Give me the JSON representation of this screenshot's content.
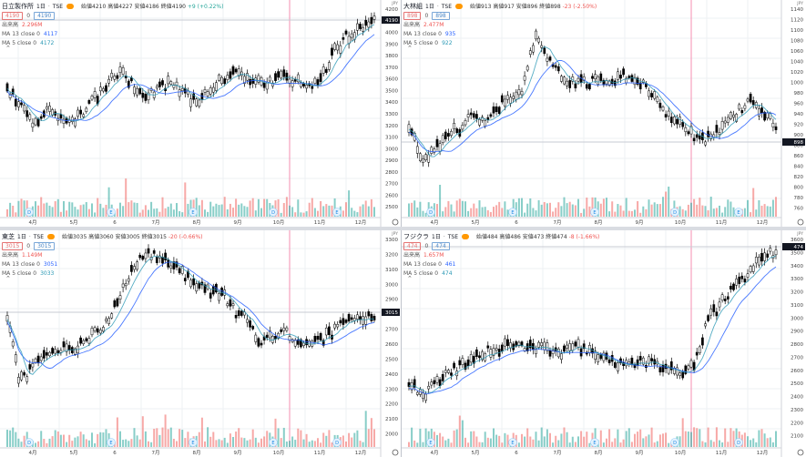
{
  "colors": {
    "up": "#26a69a",
    "down": "#ef5350",
    "candle_up": "#ffffff",
    "candle_down": "#000000",
    "ma13": "#2962ff",
    "ma5": "#2b99b5",
    "grid": "#eef0f3",
    "marker": "#ff5722"
  },
  "panes": [
    {
      "key": "p1",
      "name": "日立製作所",
      "interval": "1日",
      "exchange": "TSE",
      "ohlc": {
        "o": "4210",
        "h": "4227",
        "l": "4186",
        "c": "4190",
        "chg": "+9 (+0.22%)"
      },
      "labels": {
        "o": "始値",
        "h": "高値",
        "l": "安値",
        "c": "終値"
      },
      "boxes": [
        "4190",
        "0",
        "4190"
      ],
      "volume": {
        "label": "出来高",
        "value": "2.296M"
      },
      "ma13": {
        "label": "MA 13 close 0",
        "value": "4117"
      },
      "ma5": {
        "label": "MA 5 close 0",
        "value": "4172"
      },
      "price_axis": [
        "4200",
        "4100",
        "4000",
        "3900",
        "3800",
        "3700",
        "3600",
        "3500",
        "3400",
        "3300",
        "3200",
        "3100",
        "3000",
        "2900",
        "2800",
        "2700",
        "2600",
        "2500"
      ],
      "last_price": "4190",
      "dates": [
        "4月",
        "5月",
        "6",
        "7月",
        "8月",
        "9月",
        "10月",
        "11月",
        "12月"
      ]
    },
    {
      "key": "p2",
      "name": "大林組",
      "interval": "1日",
      "exchange": "TSE",
      "ohlc": {
        "o": "913",
        "h": "917",
        "l": "896",
        "c": "898",
        "chg": "-23 (-2.50%)"
      },
      "labels": {
        "o": "始値",
        "h": "高値",
        "l": "安値",
        "c": "終値"
      },
      "boxes": [
        "898",
        "0",
        "898"
      ],
      "volume": {
        "label": "出来高",
        "value": "2.477M"
      },
      "ma13": {
        "label": "MA 13 close 0",
        "value": "935"
      },
      "ma5": {
        "label": "MA 5 close 0",
        "value": "922"
      },
      "price_axis": [
        "1140",
        "1120",
        "1100",
        "1080",
        "1060",
        "1040",
        "1020",
        "1000",
        "980",
        "960",
        "940",
        "920",
        "900",
        "880",
        "860",
        "840",
        "820",
        "800",
        "780",
        "760"
      ],
      "last_price": "898",
      "dates": [
        "4月",
        "5月",
        "6",
        "7月",
        "8月",
        "9月",
        "10月",
        "11月",
        "12月"
      ]
    },
    {
      "key": "p3",
      "name": "東芝",
      "interval": "1日",
      "exchange": "TSE",
      "ohlc": {
        "o": "3035",
        "h": "3060",
        "l": "3005",
        "c": "3015",
        "chg": "-20 (-0.66%)"
      },
      "labels": {
        "o": "始値",
        "h": "高値",
        "l": "安値",
        "c": "終値"
      },
      "boxes": [
        "3015",
        "0",
        "3015"
      ],
      "volume": {
        "label": "出来高",
        "value": "1.149M"
      },
      "ma13": {
        "label": "MA 13 close 0",
        "value": "3051"
      },
      "ma5": {
        "label": "MA 5 close 0",
        "value": "3033"
      },
      "price_axis": [
        "3300",
        "3200",
        "3100",
        "3000",
        "2900",
        "2800",
        "2700",
        "2600",
        "2500",
        "2400",
        "2300",
        "2200",
        "2100",
        "2000"
      ],
      "last_price": "3015",
      "dates": [
        "4月",
        "5月",
        "6",
        "7月",
        "8月",
        "9月",
        "10月",
        "11月",
        "12月"
      ]
    },
    {
      "key": "p4",
      "name": "フジクラ",
      "interval": "1日",
      "exchange": "TSE",
      "ohlc": {
        "o": "484",
        "h": "486",
        "l": "473",
        "c": "474",
        "chg": "-8 (-1.66%)"
      },
      "labels": {
        "o": "始値",
        "h": "高値",
        "l": "安値",
        "c": "終値"
      },
      "boxes": [
        "474",
        "0",
        "474"
      ],
      "volume": {
        "label": "出来高",
        "value": "1.657M"
      },
      "ma13": {
        "label": "MA 13 close 0",
        "value": "461"
      },
      "ma5": {
        "label": "MA 5 close 0",
        "value": "474"
      },
      "price_axis": [
        "3600",
        "3500",
        "3400",
        "3300",
        "3200",
        "3100",
        "3000",
        "2900",
        "2800",
        "2700",
        "2600",
        "2500",
        "2400",
        "2300",
        "2200",
        "2100"
      ],
      "last_price": "474",
      "dates": [
        "4月",
        "5月",
        "6",
        "7月",
        "8月",
        "9月",
        "10月",
        "11月",
        "12月"
      ]
    }
  ],
  "left_axis_labels": [
    "JPY",
    "4280",
    "4240",
    "4200",
    "4160",
    "4120",
    "4080",
    "4040",
    "4000",
    "3960",
    "3920",
    "3880",
    "3840",
    "3800",
    "3760",
    "3720",
    "3680",
    "3640",
    "3600",
    "3560",
    "3520",
    "3480",
    "3440",
    "3400",
    "3360",
    "3320",
    "3280",
    "3240",
    "3200",
    "3160",
    "3120",
    "3080",
    "3040",
    "3000",
    "2960",
    "2920",
    "2880",
    "2840",
    "2800",
    "2760",
    "2720",
    "2680",
    "2640",
    "2600",
    "2560",
    "2520",
    "2480",
    "2440",
    "2400",
    "2360",
    "2320",
    "2280",
    "2240",
    "2200",
    "2160",
    "2120"
  ],
  "right_axis_labels": [
    "JPY",
    "1140",
    "1120",
    "1100",
    "1080",
    "1060",
    "1040",
    "1020",
    "1000",
    "980",
    "960",
    "940",
    "920",
    "900",
    "880",
    "860",
    "840",
    "820",
    "800",
    "780",
    "760",
    "JPY",
    "480",
    "460",
    "440",
    "420",
    "400",
    "380",
    "360",
    "340",
    "320",
    "300",
    "280",
    "260",
    "240"
  ],
  "event_markers": [
    "D",
    "E",
    "E",
    "D",
    "E",
    "D",
    "E",
    "E",
    "D",
    "E",
    "D",
    "E",
    "E",
    "E",
    "D",
    "E",
    "E",
    "E",
    "D"
  ]
}
